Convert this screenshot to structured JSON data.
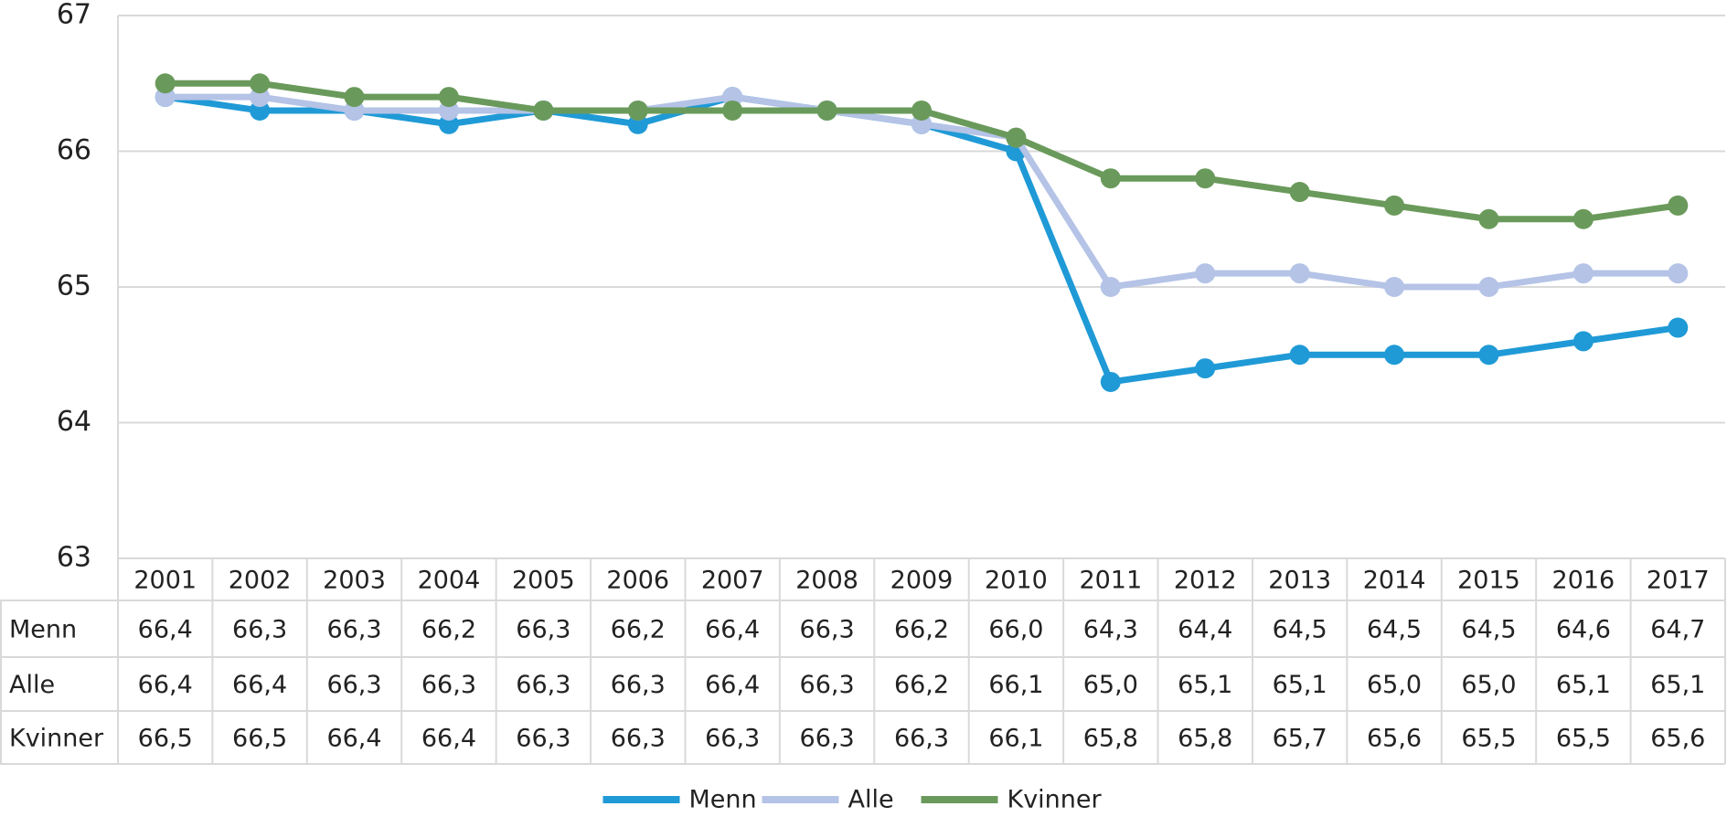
{
  "chart_data": {
    "type": "line",
    "categories": [
      "2001",
      "2002",
      "2003",
      "2004",
      "2005",
      "2006",
      "2007",
      "2008",
      "2009",
      "2010",
      "2011",
      "2012",
      "2013",
      "2014",
      "2015",
      "2016",
      "2017"
    ],
    "series": [
      {
        "name": "Menn",
        "color": "#1f9ad6",
        "values": [
          66.4,
          66.3,
          66.3,
          66.2,
          66.3,
          66.2,
          66.4,
          66.3,
          66.2,
          66.0,
          64.3,
          64.4,
          64.5,
          64.5,
          64.5,
          64.6,
          64.7
        ],
        "value_labels": [
          "66,4",
          "66,3",
          "66,3",
          "66,2",
          "66,3",
          "66,2",
          "66,4",
          "66,3",
          "66,2",
          "66,0",
          "64,3",
          "64,4",
          "64,5",
          "64,5",
          "64,5",
          "64,6",
          "64,7"
        ]
      },
      {
        "name": "Alle",
        "color": "#b4c3e6",
        "values": [
          66.4,
          66.4,
          66.3,
          66.3,
          66.3,
          66.3,
          66.4,
          66.3,
          66.2,
          66.1,
          65.0,
          65.1,
          65.1,
          65.0,
          65.0,
          65.1,
          65.1
        ],
        "value_labels": [
          "66,4",
          "66,4",
          "66,3",
          "66,3",
          "66,3",
          "66,3",
          "66,4",
          "66,3",
          "66,2",
          "66,1",
          "65,0",
          "65,1",
          "65,1",
          "65,0",
          "65,0",
          "65,1",
          "65,1"
        ]
      },
      {
        "name": "Kvinner",
        "color": "#6a9a5b",
        "values": [
          66.5,
          66.5,
          66.4,
          66.4,
          66.3,
          66.3,
          66.3,
          66.3,
          66.3,
          66.1,
          65.8,
          65.8,
          65.7,
          65.6,
          65.5,
          65.5,
          65.6
        ],
        "value_labels": [
          "66,5",
          "66,5",
          "66,4",
          "66,4",
          "66,3",
          "66,3",
          "66,3",
          "66,3",
          "66,3",
          "66,1",
          "65,8",
          "65,8",
          "65,7",
          "65,6",
          "65,5",
          "65,5",
          "65,6"
        ]
      }
    ],
    "ylim": [
      63,
      67
    ],
    "yticks": [
      63,
      64,
      65,
      66,
      67
    ],
    "grid": true
  }
}
